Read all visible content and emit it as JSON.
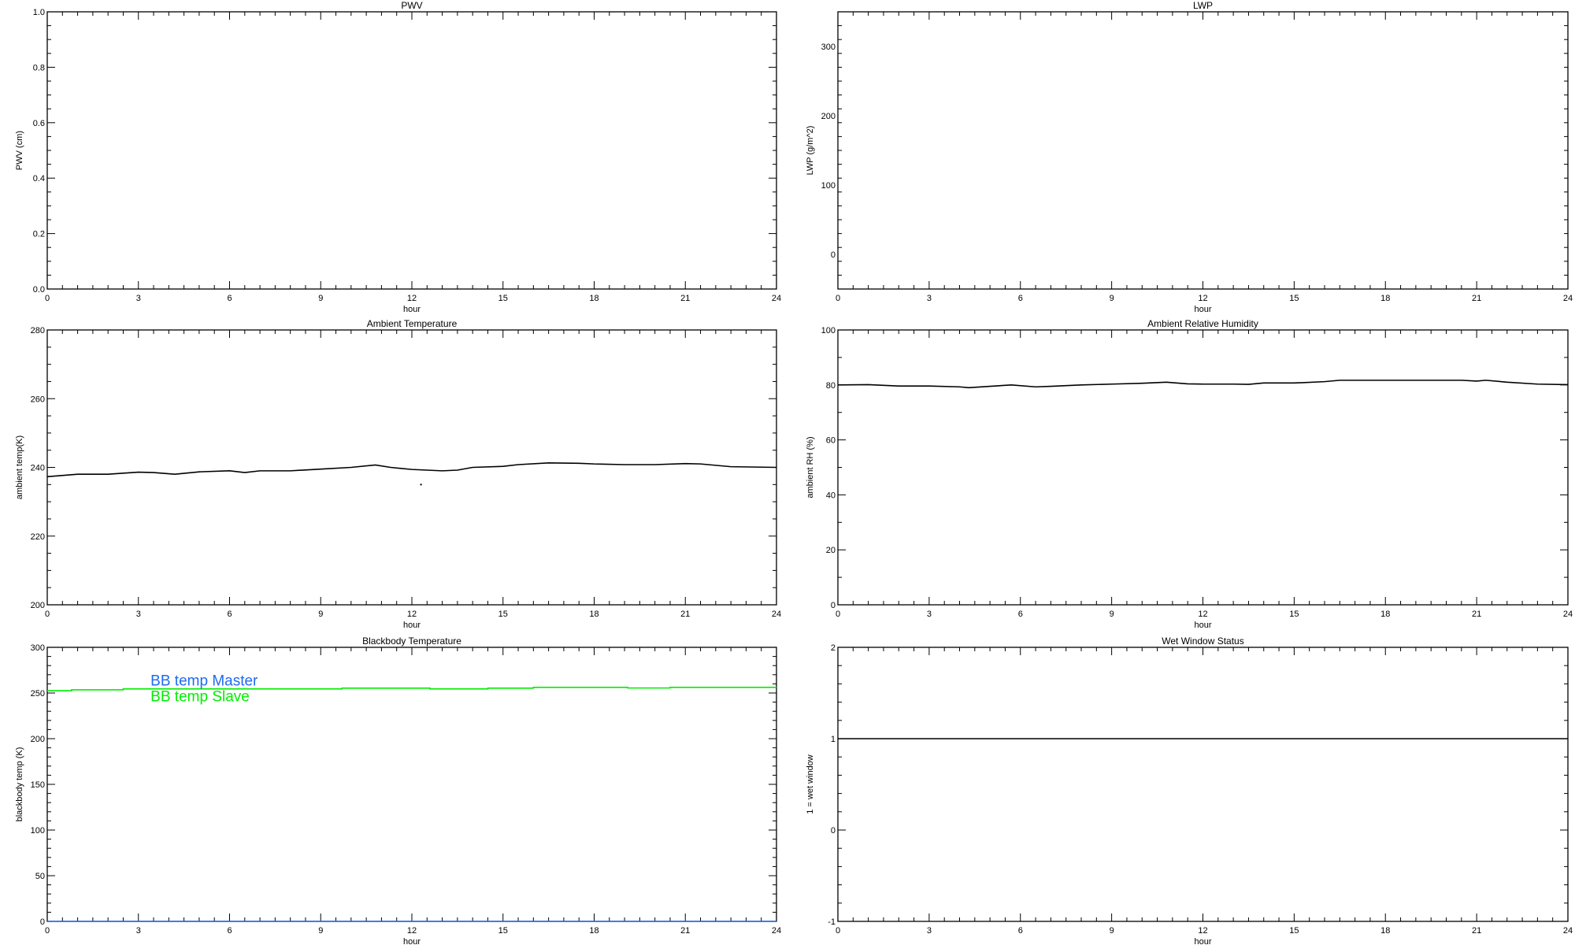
{
  "chart_data": [
    {
      "type": "line",
      "title": "PWV",
      "xlabel": "hour",
      "ylabel": "PWV (cm)",
      "xlim": [
        0,
        24
      ],
      "ylim": [
        0.0,
        1.0
      ],
      "xticks": [
        "0",
        "3",
        "6",
        "9",
        "12",
        "15",
        "18",
        "21",
        "24"
      ],
      "yticks": [
        "0.0",
        "0.2",
        "0.4",
        "0.6",
        "0.8",
        "1.0"
      ],
      "series": []
    },
    {
      "type": "line",
      "title": "LWP",
      "xlabel": "hour",
      "ylabel": "LWP (g/m^2)",
      "xlim": [
        0,
        24
      ],
      "ylim": [
        -50,
        350
      ],
      "xticks": [
        "0",
        "3",
        "6",
        "9",
        "12",
        "15",
        "18",
        "21",
        "24"
      ],
      "yticks": [
        "0",
        "100",
        "200",
        "300"
      ],
      "series": []
    },
    {
      "type": "line",
      "title": "Ambient Temperature",
      "xlabel": "hour",
      "ylabel": "ambient temp(K)",
      "xlim": [
        0,
        24
      ],
      "ylim": [
        200,
        280
      ],
      "xticks": [
        "0",
        "3",
        "6",
        "9",
        "12",
        "15",
        "18",
        "21",
        "24"
      ],
      "yticks": [
        "200",
        "220",
        "240",
        "260",
        "280"
      ],
      "series": [
        {
          "color": "#000000",
          "x": [
            0,
            1,
            2,
            3,
            3.5,
            4.2,
            5,
            6,
            6.5,
            7,
            8,
            9,
            10,
            10.8,
            11.3,
            12,
            13,
            13.5,
            14,
            15,
            15.5,
            16.5,
            17.5,
            18,
            19,
            20,
            21,
            21.5,
            22.5,
            24
          ],
          "y": [
            237.3,
            238,
            238,
            238.6,
            238.5,
            238,
            238.7,
            239,
            238.5,
            239,
            239,
            239.5,
            240,
            240.7,
            240,
            239.4,
            239,
            239.2,
            240,
            240.3,
            240.8,
            241.3,
            241.2,
            241,
            240.8,
            240.8,
            241.1,
            241,
            240.2,
            240
          ]
        },
        {
          "color": "#000000",
          "points_only": true,
          "x": [
            12.3
          ],
          "y": [
            235
          ]
        }
      ]
    },
    {
      "type": "line",
      "title": "Ambient Relative Humidity",
      "xlabel": "hour",
      "ylabel": "ambient RH (%)",
      "xlim": [
        0,
        24
      ],
      "ylim": [
        0,
        100
      ],
      "xticks": [
        "0",
        "3",
        "6",
        "9",
        "12",
        "15",
        "18",
        "21",
        "24"
      ],
      "yticks": [
        "0",
        "20",
        "40",
        "60",
        "80",
        "100"
      ],
      "series": [
        {
          "color": "#000000",
          "x": [
            0,
            1,
            2,
            3,
            4,
            4.3,
            5,
            5.7,
            6.5,
            7,
            8,
            9,
            10,
            10.8,
            11.5,
            12,
            13,
            13.5,
            14,
            15,
            16,
            16.5,
            20.5,
            21,
            21.3,
            22,
            23,
            24
          ],
          "y": [
            80,
            80.1,
            79.6,
            79.6,
            79.3,
            79,
            79.5,
            80,
            79.3,
            79.5,
            80,
            80.3,
            80.6,
            81,
            80.4,
            80.3,
            80.3,
            80.2,
            80.7,
            80.7,
            81.2,
            81.7,
            81.7,
            81.4,
            81.7,
            81,
            80.3,
            80.1
          ]
        }
      ]
    },
    {
      "type": "line",
      "title": "Blackbody Temperature",
      "xlabel": "hour",
      "ylabel": "blackbody temp (K)",
      "xlim": [
        0,
        24
      ],
      "ylim": [
        0,
        300
      ],
      "xticks": [
        "0",
        "3",
        "6",
        "9",
        "12",
        "15",
        "18",
        "21",
        "24"
      ],
      "yticks": [
        "0",
        "50",
        "100",
        "150",
        "200",
        "250",
        "300"
      ],
      "legend": [
        "BB temp Master",
        "BB temp Slave"
      ],
      "series": [
        {
          "name": "BB temp Master",
          "color": "#1e6cf0",
          "step": true,
          "x": [
            0,
            24
          ],
          "y": [
            0,
            0
          ]
        },
        {
          "name": "BB temp Slave",
          "color": "#00ee00",
          "step": true,
          "x": [
            0,
            0.8,
            2.5,
            9.7,
            12.6,
            14.5,
            16,
            19.1,
            20.5,
            24
          ],
          "y": [
            252.5,
            253.5,
            254.5,
            255.3,
            254.5,
            255.3,
            256.2,
            255.5,
            256.2,
            256.2
          ]
        }
      ]
    },
    {
      "type": "line",
      "title": "Wet Window Status",
      "xlabel": "hour",
      "ylabel": "1 = wet window",
      "xlim": [
        0,
        24
      ],
      "ylim": [
        -1,
        2
      ],
      "xticks": [
        "0",
        "3",
        "6",
        "9",
        "12",
        "15",
        "18",
        "21",
        "24"
      ],
      "yticks": [
        "-1",
        "0",
        "1",
        "2"
      ],
      "series": [
        {
          "color": "#000000",
          "x": [
            0,
            24
          ],
          "y": [
            1,
            1
          ]
        }
      ]
    }
  ]
}
